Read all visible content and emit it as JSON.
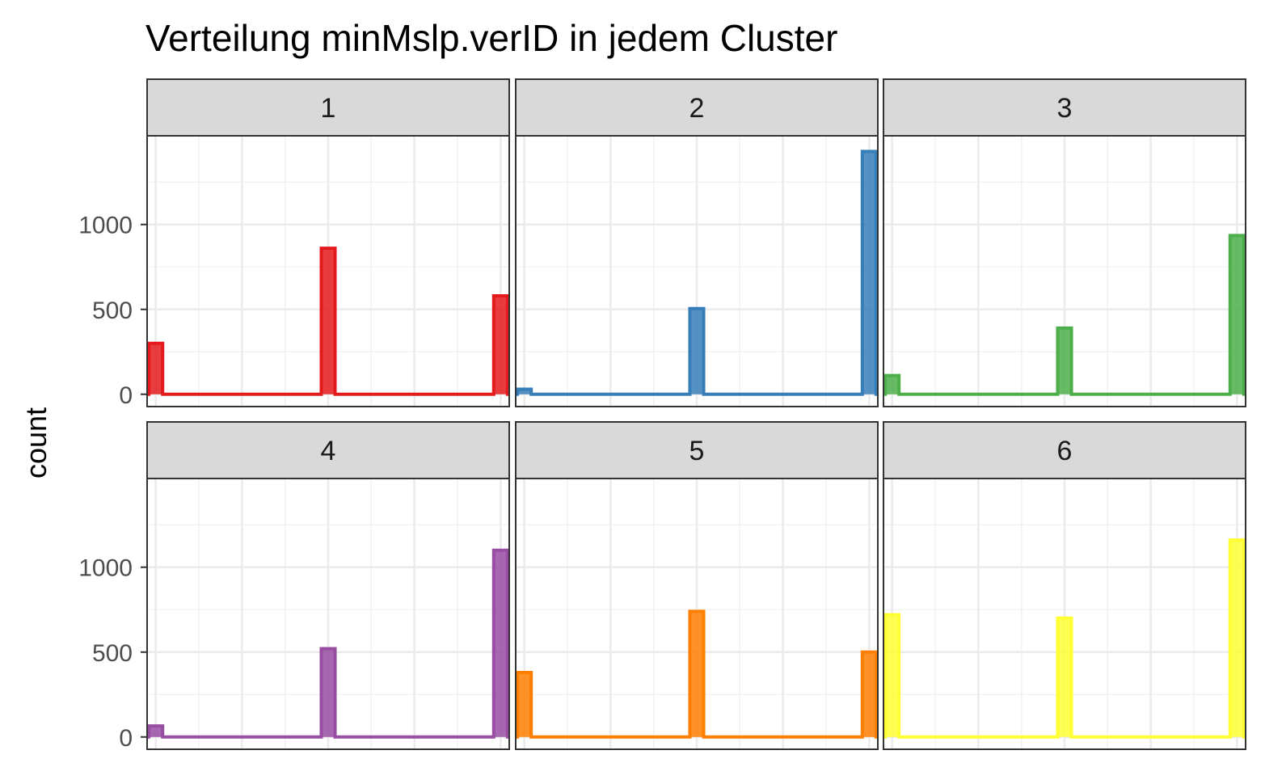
{
  "chart_data": {
    "type": "histogram",
    "title": "Verteilung minMslp.verID in jedem Cluster",
    "xlabel": "",
    "ylabel": "count",
    "ylim": [
      0,
      1450
    ],
    "yticks": [
      0,
      500,
      1000
    ],
    "ytick_labels": [
      "0",
      "500",
      "1000"
    ],
    "bin_positions": [
      "first",
      "middle",
      "last"
    ],
    "legend": "none",
    "grid": true,
    "facets": [
      {
        "label": "1",
        "color": "#E41A1C",
        "values": [
          300,
          860,
          580
        ]
      },
      {
        "label": "2",
        "color": "#377EB8",
        "values": [
          30,
          505,
          1430
        ]
      },
      {
        "label": "3",
        "color": "#4DAF4A",
        "values": [
          110,
          390,
          935
        ]
      },
      {
        "label": "4",
        "color": "#984EA3",
        "values": [
          65,
          520,
          1100
        ]
      },
      {
        "label": "5",
        "color": "#FF7F00",
        "values": [
          380,
          740,
          500
        ]
      },
      {
        "label": "6",
        "color": "#FFFF33",
        "values": [
          720,
          700,
          1160
        ]
      }
    ]
  }
}
